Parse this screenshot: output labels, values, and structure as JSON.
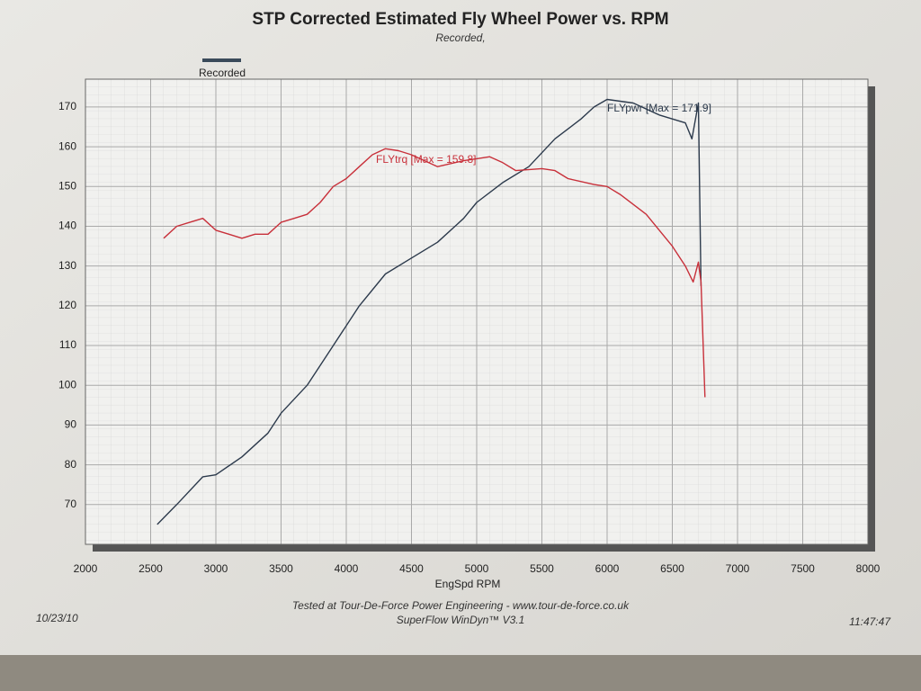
{
  "chart_data": {
    "type": "line",
    "title": "STP Corrected Estimated Fly Wheel Power vs. RPM",
    "subtitle": "Recorded,",
    "legend": "Recorded",
    "legend_color": "#3a4a5a",
    "xlabel": "EngSpd RPM",
    "footer": [
      "Tested at Tour-De-Force Power Engineering - www.tour-de-force.co.uk",
      "SuperFlow WinDyn™ V3.1"
    ],
    "date": "10/23/10",
    "time": "11:47:47",
    "xlim": [
      2000,
      8000
    ],
    "xticks": [
      2000,
      2500,
      3000,
      3500,
      4000,
      4500,
      5000,
      5500,
      6000,
      6500,
      7000,
      7500,
      8000
    ],
    "ylim": [
      60,
      177
    ],
    "yticks": [
      70,
      80,
      90,
      100,
      110,
      120,
      130,
      140,
      150,
      160,
      170
    ],
    "grid": true,
    "series": [
      {
        "label": "FLYpwr [Max = 171.9]",
        "color": "#2c3a4c",
        "x": [
          2550,
          2700,
          2900,
          3000,
          3200,
          3400,
          3500,
          3700,
          3900,
          4100,
          4300,
          4500,
          4700,
          4900,
          5000,
          5200,
          5400,
          5600,
          5800,
          5900,
          6000,
          6200,
          6400,
          6600,
          6650,
          6700,
          6720
        ],
        "values": [
          65,
          70,
          77,
          77.5,
          82,
          88,
          93,
          100,
          110,
          120,
          128,
          132,
          136,
          142,
          146,
          151,
          155,
          162,
          167,
          170,
          171.9,
          171,
          168,
          166,
          162,
          171,
          125
        ]
      },
      {
        "label": "FLYtrq [Max = 159.8]",
        "color": "#c8303a",
        "x": [
          2600,
          2700,
          2800,
          2900,
          3000,
          3100,
          3200,
          3300,
          3400,
          3500,
          3600,
          3700,
          3800,
          3900,
          4000,
          4100,
          4200,
          4300,
          4400,
          4500,
          4700,
          4900,
          5000,
          5100,
          5200,
          5300,
          5500,
          5600,
          5700,
          5900,
          6000,
          6100,
          6300,
          6500,
          6600,
          6660,
          6700,
          6720,
          6750
        ],
        "values": [
          137,
          140,
          141,
          142,
          139,
          138,
          137,
          138,
          138,
          141,
          142,
          143,
          146,
          150,
          152,
          155,
          158,
          159.5,
          159,
          158,
          155,
          156.5,
          157,
          157.5,
          156,
          154,
          154.5,
          154,
          152,
          150.5,
          150,
          148,
          143,
          135,
          130,
          126,
          131,
          126,
          97
        ]
      }
    ]
  }
}
